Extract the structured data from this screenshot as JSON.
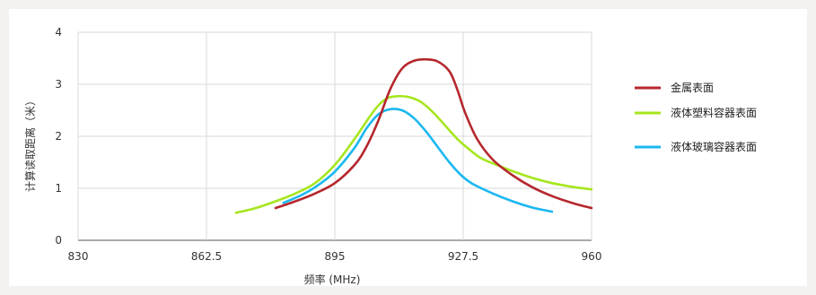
{
  "chart_data": {
    "type": "line",
    "title": "",
    "xlabel": "频率 (MHz)",
    "ylabel": "计算读取距离（米）",
    "xlim": [
      830,
      960
    ],
    "ylim": [
      0,
      4
    ],
    "x_ticks": [
      "830",
      "862.5",
      "895",
      "927.5",
      "960"
    ],
    "y_ticks": [
      "0",
      "1",
      "2",
      "3",
      "4"
    ],
    "grid": "horizontal",
    "legend_position": "right",
    "series": [
      {
        "name": "金属表面",
        "color": "#b5272d",
        "x": [
          880,
          885,
          890,
          895,
          900,
          903,
          906,
          909,
          912,
          915,
          918,
          921,
          924,
          926,
          928,
          931,
          935,
          940,
          945,
          950,
          955,
          960
        ],
        "y": [
          0.62,
          0.75,
          0.9,
          1.1,
          1.45,
          1.8,
          2.3,
          2.9,
          3.3,
          3.45,
          3.48,
          3.44,
          3.25,
          2.9,
          2.45,
          1.95,
          1.55,
          1.25,
          1.02,
          0.85,
          0.72,
          0.62
        ]
      },
      {
        "name": "液体塑料容器表面",
        "color": "#a6e61e",
        "x": [
          870,
          875,
          880,
          885,
          890,
          895,
          900,
          905,
          908,
          911,
          914,
          917,
          920,
          923,
          926,
          929,
          932,
          936,
          940,
          945,
          950,
          955,
          960
        ],
        "y": [
          0.53,
          0.62,
          0.75,
          0.9,
          1.1,
          1.45,
          1.95,
          2.5,
          2.72,
          2.77,
          2.75,
          2.65,
          2.45,
          2.2,
          1.95,
          1.75,
          1.58,
          1.45,
          1.33,
          1.2,
          1.1,
          1.03,
          0.98
        ]
      },
      {
        "name": "液体玻璃容器表面",
        "color": "#1bb8f0",
        "x": [
          882,
          886,
          890,
          895,
          900,
          903,
          906,
          909,
          912,
          915,
          918,
          921,
          924,
          927,
          930,
          935,
          940,
          945,
          950
        ],
        "y": [
          0.72,
          0.85,
          1.02,
          1.32,
          1.78,
          2.15,
          2.42,
          2.52,
          2.5,
          2.35,
          2.1,
          1.8,
          1.5,
          1.25,
          1.08,
          0.9,
          0.75,
          0.63,
          0.55
        ]
      }
    ]
  }
}
